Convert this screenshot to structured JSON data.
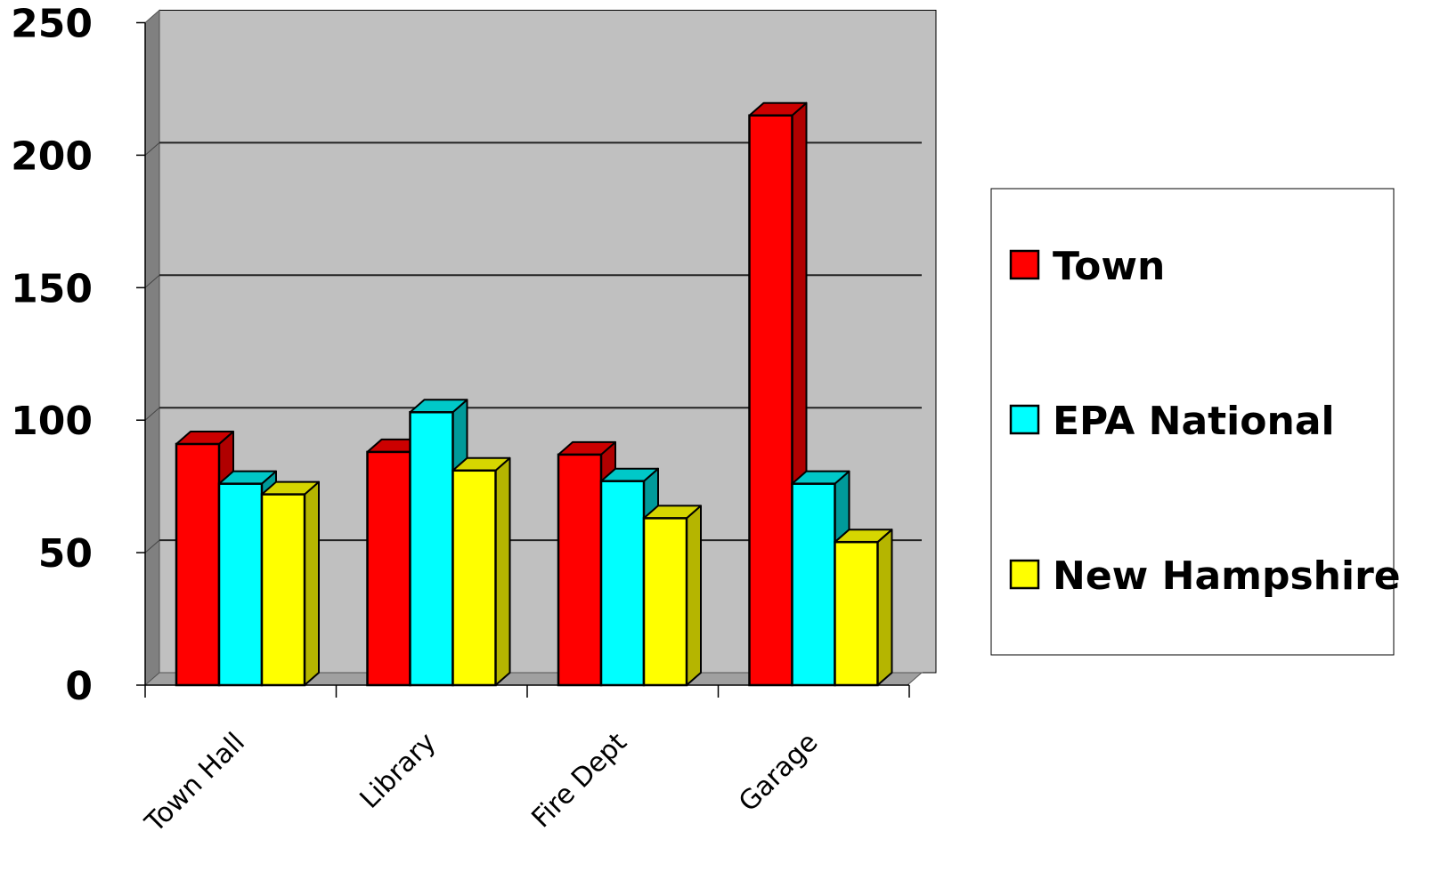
{
  "chart_data": {
    "type": "bar",
    "style": "3d-clustered-column",
    "title": "",
    "xlabel": "",
    "ylabel": "",
    "categories": [
      "Town Hall",
      "Library",
      "Fire Dept",
      "Garage"
    ],
    "series": [
      {
        "name": "Town",
        "values": [
          91,
          88,
          87,
          215
        ],
        "color": "#ff0000",
        "side_color": "#b00000",
        "top_color": "#cc0000"
      },
      {
        "name": "EPA National",
        "values": [
          76,
          103,
          77,
          76
        ],
        "color": "#00ffff",
        "side_color": "#009a9a",
        "top_color": "#00c8c8"
      },
      {
        "name": "New Hampshire",
        "values": [
          72,
          81,
          63,
          54
        ],
        "color": "#ffff00",
        "side_color": "#b5b500",
        "top_color": "#d6d600"
      }
    ],
    "ylim": [
      0,
      250
    ],
    "y_ticks": [
      "0",
      "50",
      "100",
      "150",
      "200",
      "250"
    ],
    "grid": true,
    "legend_position": "right",
    "plot_background": "#c0c0c0",
    "wall_color": "#808080",
    "floor_color": "#a0a0a0"
  }
}
